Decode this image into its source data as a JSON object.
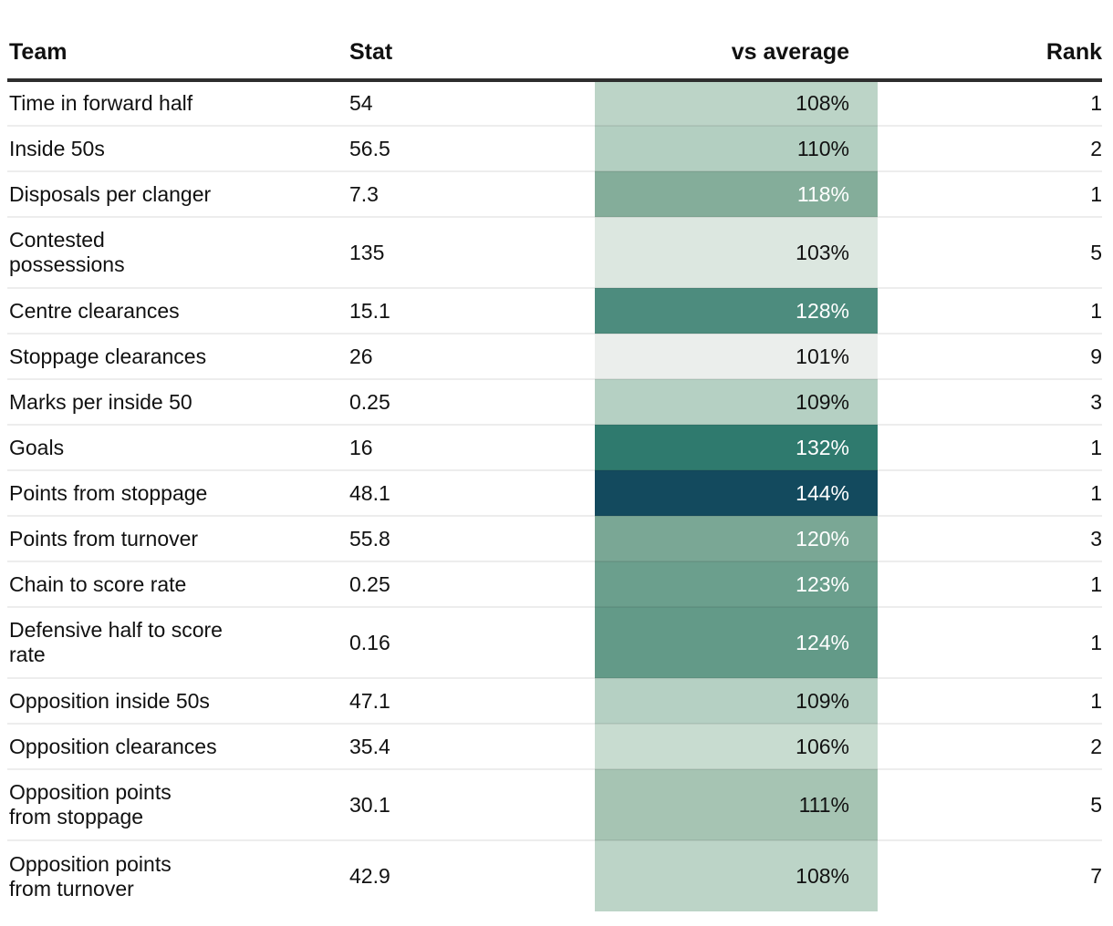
{
  "table": {
    "columns": [
      {
        "key": "team",
        "label": "Team"
      },
      {
        "key": "stat",
        "label": "Stat"
      },
      {
        "key": "pct",
        "label": "vs average"
      },
      {
        "key": "rank",
        "label": "Rank"
      }
    ],
    "rows": [
      {
        "team": "Time in forward half",
        "stat": "54",
        "pct": "108%",
        "rank": "1",
        "bg": "#bcd4c7",
        "fg": "#111111",
        "tall": false
      },
      {
        "team": "Inside 50s",
        "stat": "56.5",
        "pct": "110%",
        "rank": "2",
        "bg": "#b3cfc1",
        "fg": "#111111",
        "tall": false
      },
      {
        "team": "Disposals per clanger",
        "stat": "7.3",
        "pct": "118%",
        "rank": "1",
        "bg": "#84ad9a",
        "fg": "#ffffff",
        "tall": false
      },
      {
        "team": "Contested\npossessions",
        "stat": "135",
        "pct": "103%",
        "rank": "5",
        "bg": "#dce7e0",
        "fg": "#111111",
        "tall": true
      },
      {
        "team": "Centre clearances",
        "stat": "15.1",
        "pct": "128%",
        "rank": "1",
        "bg": "#4d8c7e",
        "fg": "#ffffff",
        "tall": false
      },
      {
        "team": "Stoppage clearances",
        "stat": "26",
        "pct": "101%",
        "rank": "9",
        "bg": "#ebeeec",
        "fg": "#111111",
        "tall": false
      },
      {
        "team": "Marks per inside 50",
        "stat": "0.25",
        "pct": "109%",
        "rank": "3",
        "bg": "#b5d0c3",
        "fg": "#111111",
        "tall": false
      },
      {
        "team": "Goals",
        "stat": "16",
        "pct": "132%",
        "rank": "1",
        "bg": "#2f7a6e",
        "fg": "#ffffff",
        "tall": false
      },
      {
        "team": "Points from stoppage",
        "stat": "48.1",
        "pct": "144%",
        "rank": "1",
        "bg": "#134a5e",
        "fg": "#ffffff",
        "tall": false
      },
      {
        "team": "Points from turnover",
        "stat": "55.8",
        "pct": "120%",
        "rank": "3",
        "bg": "#7aa795",
        "fg": "#ffffff",
        "tall": false
      },
      {
        "team": "Chain to score rate",
        "stat": "0.25",
        "pct": "123%",
        "rank": "1",
        "bg": "#6b9f8d",
        "fg": "#ffffff",
        "tall": false
      },
      {
        "team": "Defensive half to score\nrate",
        "stat": "0.16",
        "pct": "124%",
        "rank": "1",
        "bg": "#639a88",
        "fg": "#ffffff",
        "tall": true
      },
      {
        "team": "Opposition inside 50s",
        "stat": "47.1",
        "pct": "109%",
        "rank": "1",
        "bg": "#b5d0c3",
        "fg": "#111111",
        "tall": false
      },
      {
        "team": "Opposition clearances",
        "stat": "35.4",
        "pct": "106%",
        "rank": "2",
        "bg": "#c8dcd0",
        "fg": "#111111",
        "tall": false
      },
      {
        "team": "Opposition points\nfrom stoppage",
        "stat": "30.1",
        "pct": "111%",
        "rank": "5",
        "bg": "#a6c4b3",
        "fg": "#111111",
        "tall": true
      },
      {
        "team": "Opposition points\nfrom turnover",
        "stat": "42.9",
        "pct": "108%",
        "rank": "7",
        "bg": "#bcd4c7",
        "fg": "#111111",
        "tall": true
      }
    ]
  },
  "chart_data": {
    "type": "table",
    "title": "",
    "columns": [
      "Team",
      "Stat",
      "vs average",
      "Rank"
    ],
    "rows": [
      {
        "metric": "Time in forward half",
        "stat": 54,
        "vs_average_pct": 108,
        "rank": 1
      },
      {
        "metric": "Inside 50s",
        "stat": 56.5,
        "vs_average_pct": 110,
        "rank": 2
      },
      {
        "metric": "Disposals per clanger",
        "stat": 7.3,
        "vs_average_pct": 118,
        "rank": 1
      },
      {
        "metric": "Contested possessions",
        "stat": 135,
        "vs_average_pct": 103,
        "rank": 5
      },
      {
        "metric": "Centre clearances",
        "stat": 15.1,
        "vs_average_pct": 128,
        "rank": 1
      },
      {
        "metric": "Stoppage clearances",
        "stat": 26,
        "vs_average_pct": 101,
        "rank": 9
      },
      {
        "metric": "Marks per inside 50",
        "stat": 0.25,
        "vs_average_pct": 109,
        "rank": 3
      },
      {
        "metric": "Goals",
        "stat": 16,
        "vs_average_pct": 132,
        "rank": 1
      },
      {
        "metric": "Points from stoppage",
        "stat": 48.1,
        "vs_average_pct": 144,
        "rank": 1
      },
      {
        "metric": "Points from turnover",
        "stat": 55.8,
        "vs_average_pct": 120,
        "rank": 3
      },
      {
        "metric": "Chain to score rate",
        "stat": 0.25,
        "vs_average_pct": 123,
        "rank": 1
      },
      {
        "metric": "Defensive half to score rate",
        "stat": 0.16,
        "vs_average_pct": 124,
        "rank": 1
      },
      {
        "metric": "Opposition inside 50s",
        "stat": 47.1,
        "vs_average_pct": 109,
        "rank": 1
      },
      {
        "metric": "Opposition clearances",
        "stat": 35.4,
        "vs_average_pct": 106,
        "rank": 2
      },
      {
        "metric": "Opposition points from stoppage",
        "stat": 30.1,
        "vs_average_pct": 111,
        "rank": 5
      },
      {
        "metric": "Opposition points from turnover",
        "stat": 42.9,
        "vs_average_pct": 108,
        "rank": 7
      }
    ],
    "heatmap": {
      "applied_to_column": "vs average",
      "scale": "sequential green-teal, darker = higher percentage",
      "min_pct": 101,
      "max_pct": 144,
      "min_color": "#ebeeec",
      "max_color": "#134a5e"
    },
    "layout": {
      "grid": "horizontal row separators only",
      "legend": "none"
    }
  },
  "colors": {
    "header_rule": "#2e2e2e",
    "row_separator": "rgba(20,20,20,0.08)",
    "text_dark": "#111111",
    "text_light": "#ffffff",
    "background": "#ffffff"
  }
}
